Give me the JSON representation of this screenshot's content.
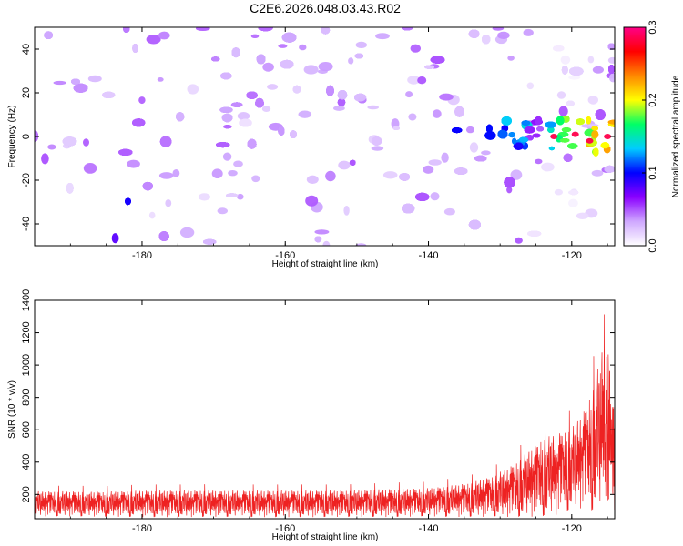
{
  "title": "C2E6.2026.048.03.43.R02",
  "chart_data": [
    {
      "type": "heatmap",
      "title": "C2E6.2026.048.03.43.R02",
      "xlabel": "Height of straight line (km)",
      "ylabel": "Frequency (Hz)",
      "xlim": [
        -195,
        -114
      ],
      "ylim": [
        -50,
        50
      ],
      "xticks": [
        -180,
        -160,
        -140,
        -120
      ],
      "yticks": [
        -40,
        -20,
        0,
        20,
        40
      ],
      "colorbar": {
        "label": "Normalized spectral amplitude",
        "range": [
          0.0,
          0.3
        ],
        "ticks": [
          "0.0",
          "0.1",
          "0.2",
          "0.3"
        ],
        "colormap": [
          "#ffffff",
          "#cfa8ff",
          "#8a00ff",
          "#0000ff",
          "#00ccff",
          "#00ff66",
          "#ffff00",
          "#ff8800",
          "#ff0000",
          "#ff0088"
        ]
      },
      "features": {
        "background_amplitude": 0.03,
        "strong_band_x_range": [
          -133,
          -114
        ],
        "strong_band_frequency_range": [
          -8,
          8
        ],
        "peak_amplitude": 0.3,
        "peak_frequency": 0
      }
    },
    {
      "type": "line",
      "xlabel": "Height of straight line (km)",
      "ylabel": "SNR (10 * v/v)",
      "xlim": [
        -195,
        -114
      ],
      "ylim": [
        50,
        1400
      ],
      "xticks": [
        -180,
        -160,
        -140,
        -120
      ],
      "yticks": [
        200,
        400,
        600,
        800,
        1000,
        1200,
        1400
      ],
      "series": [
        {
          "name": "SNR",
          "color": "#ee2222",
          "x": [
            -195,
            -190,
            -185,
            -180,
            -175,
            -170,
            -165,
            -160,
            -155,
            -150,
            -145,
            -140,
            -137,
            -134,
            -131,
            -128,
            -126,
            -124,
            -122,
            -120,
            -118,
            -117,
            -116,
            -115.5,
            -115,
            -114.5,
            -114
          ],
          "mean": [
            140,
            140,
            138,
            140,
            140,
            142,
            140,
            140,
            140,
            142,
            145,
            150,
            155,
            165,
            185,
            220,
            260,
            300,
            320,
            350,
            420,
            470,
            560,
            620,
            640,
            520,
            420
          ],
          "spread": [
            80,
            80,
            80,
            85,
            85,
            85,
            85,
            85,
            85,
            85,
            90,
            90,
            100,
            110,
            130,
            170,
            210,
            250,
            260,
            260,
            320,
            400,
            480,
            550,
            540,
            420,
            330
          ]
        }
      ]
    }
  ]
}
